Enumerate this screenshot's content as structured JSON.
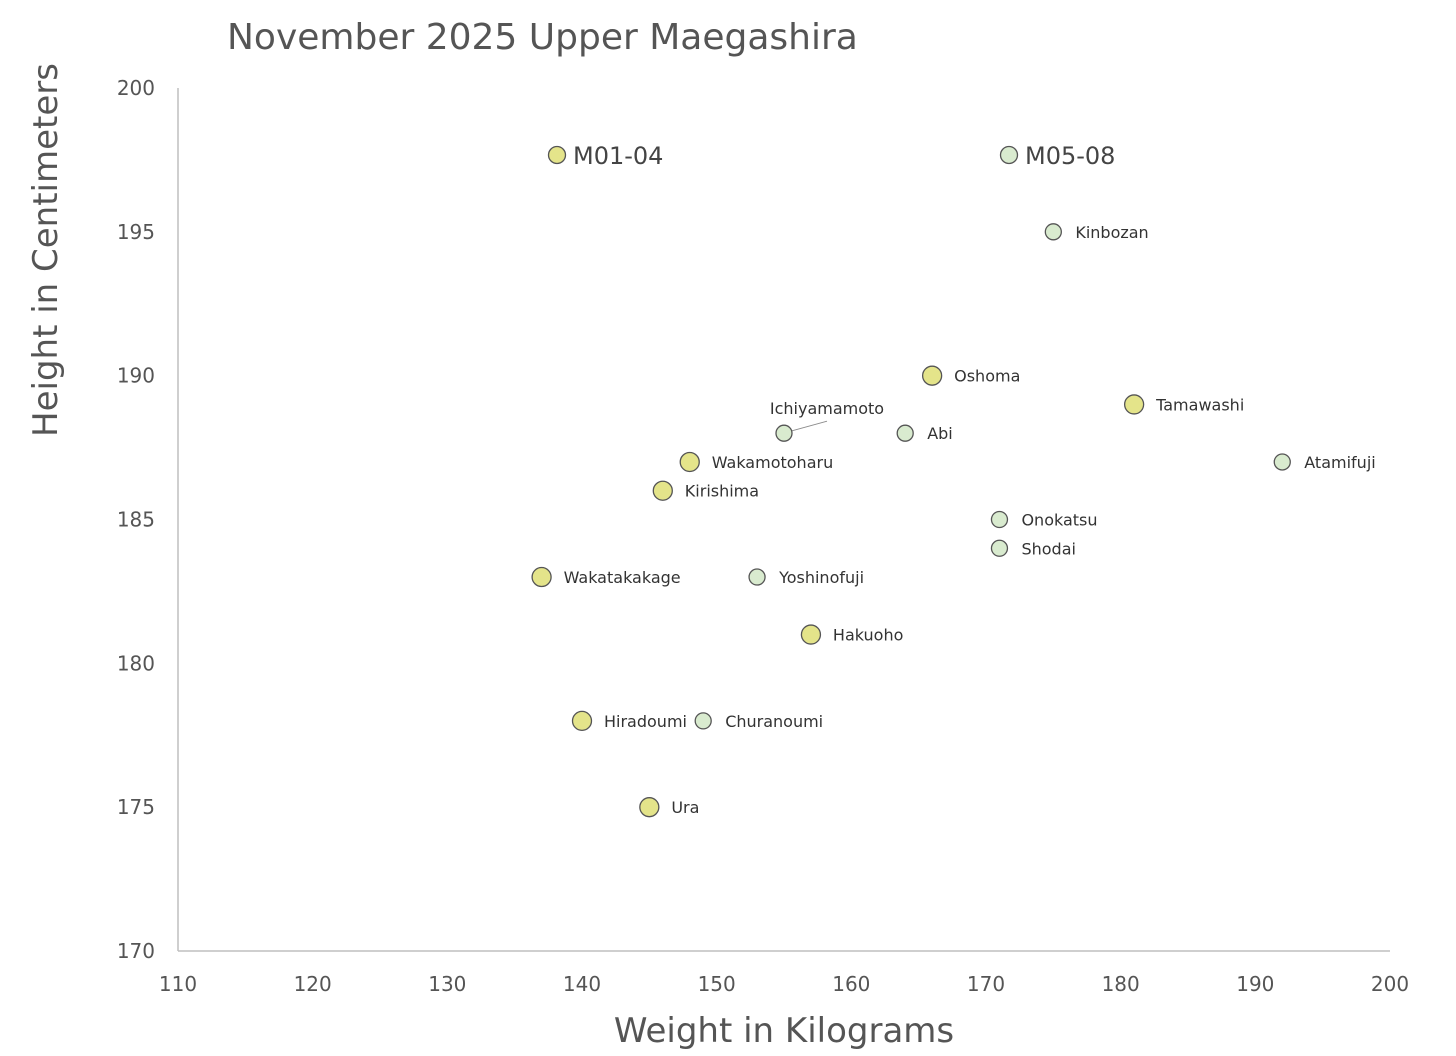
{
  "chart_data": {
    "type": "scatter",
    "title": "November 2025 Upper Maegashira",
    "xlabel": "Weight in Kilograms",
    "ylabel": "Height in Centimeters",
    "xlim": [
      110,
      200
    ],
    "ylim": [
      170,
      200
    ],
    "xticks": [
      "110",
      "120",
      "130",
      "140",
      "150",
      "160",
      "170",
      "180",
      "190",
      "200"
    ],
    "yticks": [
      "170",
      "175",
      "180",
      "185",
      "190",
      "195",
      "200"
    ],
    "grid": false,
    "series": [
      {
        "name": "M01-04",
        "color": "#e4e48a",
        "points": [
          {
            "label": "Oshoma",
            "x": 166,
            "y": 190
          },
          {
            "label": "Tamawashi",
            "x": 181,
            "y": 189
          },
          {
            "label": "Wakamotoharu",
            "x": 148,
            "y": 187
          },
          {
            "label": "Kirishima",
            "x": 146,
            "y": 186
          },
          {
            "label": "Wakatakakage",
            "x": 137,
            "y": 183
          },
          {
            "label": "Hakuoho",
            "x": 157,
            "y": 181
          },
          {
            "label": "Hiradoumi",
            "x": 140,
            "y": 178
          },
          {
            "label": "Ura",
            "x": 145,
            "y": 175
          }
        ]
      },
      {
        "name": "M05-08",
        "color": "#d9ebcf",
        "points": [
          {
            "label": "Kinbozan",
            "x": 175,
            "y": 195
          },
          {
            "label": "Ichiyamamoto",
            "x": 155,
            "y": 188
          },
          {
            "label": "Abi",
            "x": 164,
            "y": 188
          },
          {
            "label": "Atamifuji",
            "x": 192,
            "y": 187
          },
          {
            "label": "Onokatsu",
            "x": 171,
            "y": 185
          },
          {
            "label": "Shodai",
            "x": 171,
            "y": 184
          },
          {
            "label": "Yoshinofuji",
            "x": 153,
            "y": 183
          },
          {
            "label": "Churanoumi",
            "x": 149,
            "y": 178
          }
        ]
      }
    ],
    "legend": "top, inside plot area"
  }
}
